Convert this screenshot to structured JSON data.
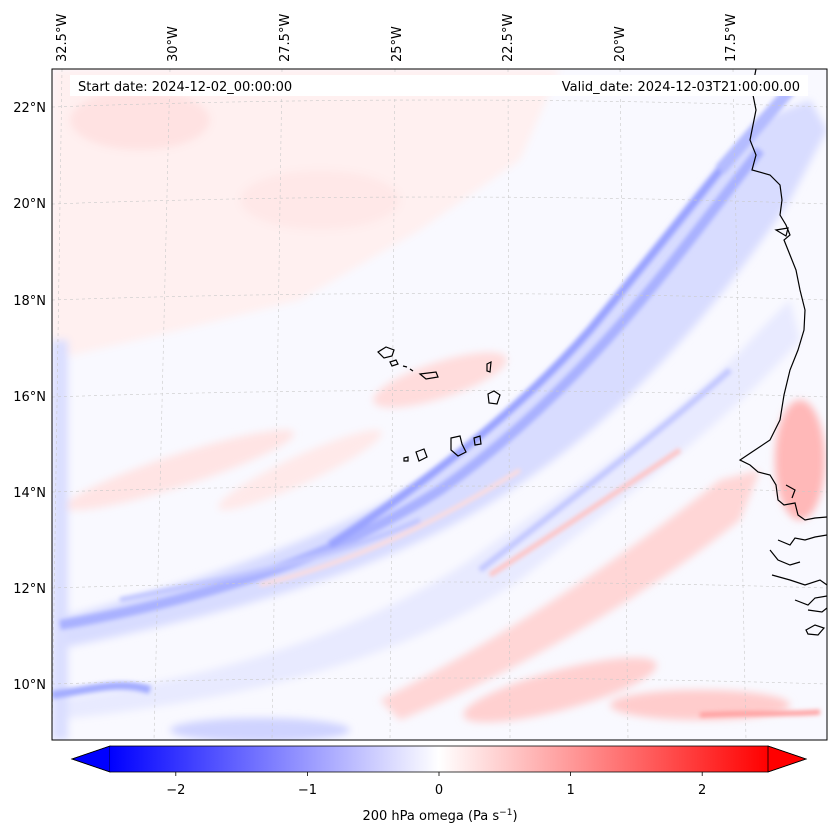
{
  "map": {
    "start_date_label": "Start date: 2024-12-02_00:00:00",
    "valid_date_label": "Valid_date: 2024-12-03T21:00:00.00",
    "longitude_labels": [
      "32.5°W",
      "30°W",
      "27.5°W",
      "25°W",
      "22.5°W",
      "20°W",
      "17.5°W"
    ],
    "latitude_labels": [
      "22°N",
      "20°N",
      "18°N",
      "16°N",
      "14°N",
      "12°N",
      "10°N"
    ],
    "field": "200 hPa omega",
    "features": [
      "Cape Verde islands",
      "West African coastline (Senegal, Gambia, Guinea-Bissau)"
    ]
  },
  "colorbar": {
    "label_main": "200 hPa omega (Pa s",
    "label_exp": "−1",
    "label_close": ")",
    "tick_labels": [
      "−2",
      "−1",
      "0",
      "1",
      "2"
    ],
    "tick_values": [
      -2,
      -1,
      0,
      1,
      2
    ],
    "range": [
      -2.5,
      2.5
    ],
    "colormap": "bwr",
    "min_color": "#0000ff",
    "mid_color": "#ffffff",
    "max_color": "#ff0000"
  }
}
